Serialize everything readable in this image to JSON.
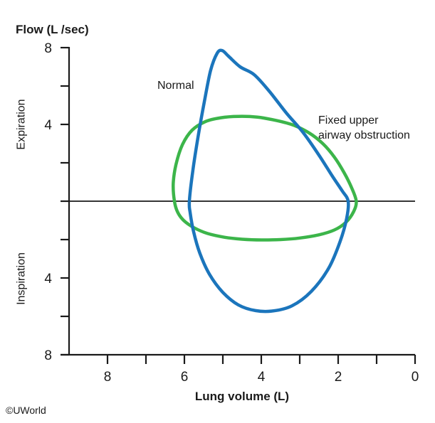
{
  "figure": {
    "copyright": "©UWorld",
    "obstruction_annotation_line1": "Fixed upper",
    "obstruction_annotation_line2": "airway obstruction"
  },
  "chart_data": {
    "type": "line",
    "subtype": "flow-volume-loop",
    "xlabel": "Lung volume (L)",
    "ylabel": "Flow (L /sec)",
    "x_axis": {
      "min": 0,
      "max": 9,
      "reversed": true,
      "ticks": [
        8,
        7,
        6,
        5,
        4,
        3,
        2,
        1,
        0
      ],
      "labeled_ticks": [
        8,
        6,
        4,
        2,
        0
      ]
    },
    "y_axis": {
      "min": -8,
      "max": 8,
      "ticks": [
        8,
        6,
        4,
        2,
        0,
        -2,
        -4,
        -6,
        -8
      ],
      "labeled_ticks": [
        8,
        4,
        -4,
        -8
      ],
      "labels_absolute": true,
      "upper_half": "Expiration",
      "lower_half": "Inspiration"
    },
    "zero_flow_line": true,
    "axis_color": "#1a1a1a",
    "series": [
      {
        "name": "Fixed upper airway obstruction",
        "color": "#3cb54a",
        "closed_loop": true,
        "points_vol_flow": [
          [
            6.26,
            0
          ],
          [
            6.29,
            0.9
          ],
          [
            6.22,
            1.9
          ],
          [
            6.05,
            2.95
          ],
          [
            5.8,
            3.7
          ],
          [
            5.45,
            4.15
          ],
          [
            5.05,
            4.35
          ],
          [
            4.6,
            4.42
          ],
          [
            4.1,
            4.38
          ],
          [
            3.6,
            4.2
          ],
          [
            3.15,
            3.95
          ],
          [
            2.75,
            3.55
          ],
          [
            2.4,
            3.0
          ],
          [
            2.1,
            2.3
          ],
          [
            1.85,
            1.5
          ],
          [
            1.65,
            0.7
          ],
          [
            1.53,
            0
          ],
          [
            1.6,
            -0.55
          ],
          [
            1.8,
            -1.1
          ],
          [
            2.1,
            -1.5
          ],
          [
            2.5,
            -1.75
          ],
          [
            3.0,
            -1.92
          ],
          [
            3.5,
            -2.0
          ],
          [
            4.0,
            -2.02
          ],
          [
            4.5,
            -1.98
          ],
          [
            4.95,
            -1.88
          ],
          [
            5.4,
            -1.68
          ],
          [
            5.75,
            -1.38
          ],
          [
            6.02,
            -1.0
          ],
          [
            6.18,
            -0.55
          ]
        ]
      },
      {
        "name": "Normal",
        "color": "#1b75bc",
        "closed_loop": true,
        "points_vol_flow": [
          [
            5.87,
            0
          ],
          [
            5.78,
            1.6
          ],
          [
            5.64,
            3.4
          ],
          [
            5.48,
            5.2
          ],
          [
            5.32,
            6.8
          ],
          [
            5.15,
            7.7
          ],
          [
            5.02,
            7.85
          ],
          [
            4.85,
            7.55
          ],
          [
            4.55,
            7.0
          ],
          [
            4.19,
            6.6
          ],
          [
            3.8,
            5.75
          ],
          [
            3.35,
            4.6
          ],
          [
            2.9,
            3.55
          ],
          [
            2.5,
            2.4
          ],
          [
            2.15,
            1.3
          ],
          [
            1.9,
            0.55
          ],
          [
            1.74,
            0
          ],
          [
            1.78,
            -0.9
          ],
          [
            1.95,
            -2.1
          ],
          [
            2.25,
            -3.5
          ],
          [
            2.7,
            -4.7
          ],
          [
            3.2,
            -5.45
          ],
          [
            3.7,
            -5.72
          ],
          [
            4.15,
            -5.7
          ],
          [
            4.6,
            -5.4
          ],
          [
            5.0,
            -4.75
          ],
          [
            5.35,
            -3.8
          ],
          [
            5.6,
            -2.7
          ],
          [
            5.76,
            -1.6
          ],
          [
            5.85,
            -0.6
          ]
        ]
      }
    ]
  }
}
